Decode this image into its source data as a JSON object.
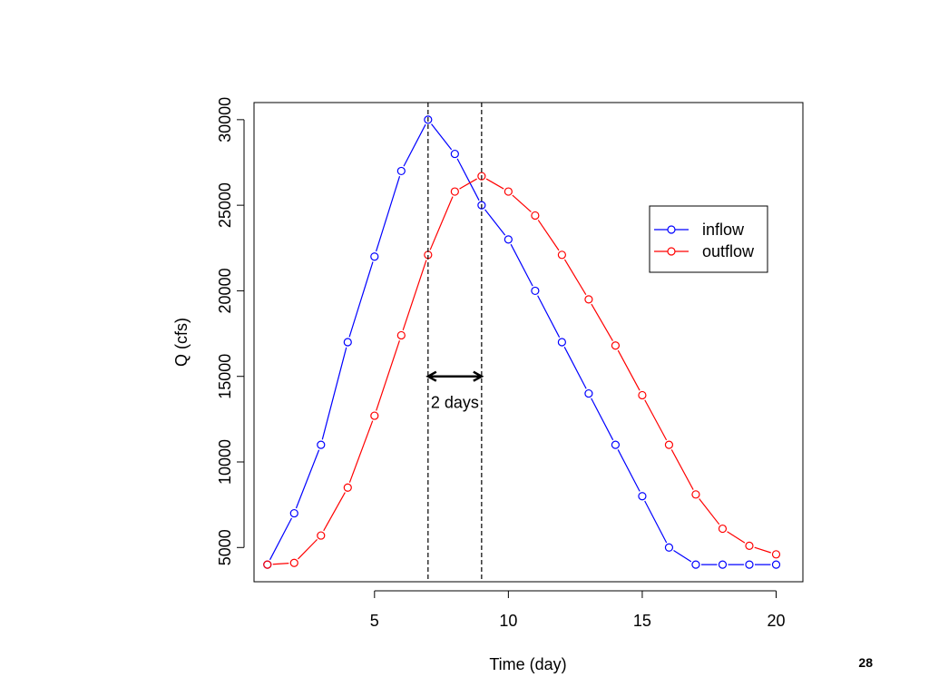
{
  "page_number": "28",
  "chart_data": {
    "type": "line",
    "xlabel": "Time (day)",
    "ylabel": "Q (cfs)",
    "xlim": [
      0.5,
      21.0
    ],
    "ylim": [
      3000,
      31000
    ],
    "xticks": [
      5,
      10,
      15,
      20
    ],
    "yticks": [
      5000,
      10000,
      15000,
      20000,
      25000,
      30000
    ],
    "x": [
      1,
      2,
      3,
      4,
      5,
      6,
      7,
      8,
      9,
      10,
      11,
      12,
      13,
      14,
      15,
      16,
      17,
      18,
      19,
      20
    ],
    "grid": false,
    "legend_placement": "right",
    "series": [
      {
        "name": "inflow",
        "color": "#0000ff",
        "values": [
          4000,
          7000,
          11000,
          17000,
          22000,
          27000,
          30000,
          28000,
          25000,
          23000,
          20000,
          17000,
          14000,
          11000,
          8000,
          5000,
          4000,
          4000,
          4000,
          4000
        ]
      },
      {
        "name": "outflow",
        "color": "#ff0000",
        "values": [
          4000,
          4100,
          5700,
          8500,
          12700,
          17400,
          22100,
          25800,
          26700,
          25800,
          24400,
          22100,
          19500,
          16800,
          13900,
          11000,
          8100,
          6100,
          5100,
          4600
        ]
      }
    ],
    "vlines": [
      7,
      9
    ],
    "annotation": {
      "text": "2 days",
      "x_from": 7,
      "x_to": 9,
      "y": 15000
    }
  }
}
